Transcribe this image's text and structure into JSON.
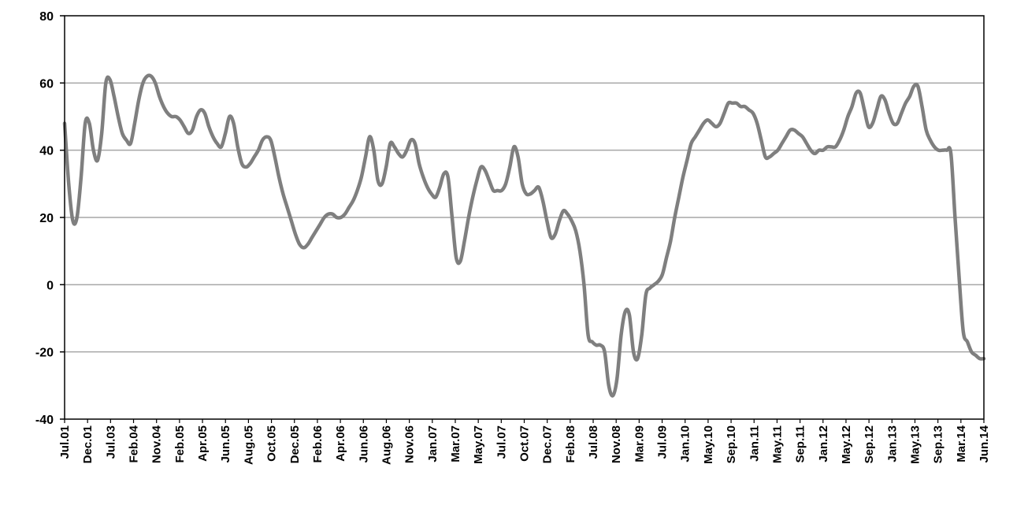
{
  "chart_data": {
    "type": "line",
    "title": "",
    "xlabel": "",
    "ylabel": "",
    "ylim": [
      -40,
      80
    ],
    "yticks": [
      -40,
      -20,
      0,
      20,
      40,
      60,
      80
    ],
    "grid": "horizontal",
    "legend": "none",
    "x_tick_labels": [
      "Jul.01",
      "Dec.01",
      "Jul.03",
      "Feb.04",
      "Nov.04",
      "Feb.05",
      "Apr.05",
      "Jun.05",
      "Aug.05",
      "Oct.05",
      "Dec.05",
      "Feb.06",
      "Apr.06",
      "Jun.06",
      "Aug.06",
      "Nov.06",
      "Jan.07",
      "Mar.07",
      "May.07",
      "Jul.07",
      "Oct.07",
      "Dec.07",
      "Feb.08",
      "Jul.08",
      "Nov.08",
      "Mar.09",
      "Jul.09",
      "Jan.10",
      "May.10",
      "Sep.10",
      "Jan.11",
      "May.11",
      "Sep.11",
      "Jan.12",
      "May.12",
      "Sep.12",
      "Jan.13",
      "May.13",
      "Sep.13",
      "Mar.14",
      "Jun.14"
    ],
    "colors": {
      "line": "#7f7f7f",
      "grid": "#a6a6a6",
      "axis": "#000000"
    },
    "series": [
      {
        "values": [
          48,
          30,
          19,
          20,
          32,
          48,
          48,
          40,
          37,
          45,
          60,
          61,
          56,
          50,
          45,
          43,
          42,
          48,
          55,
          60,
          62,
          62,
          60,
          56,
          53,
          51,
          50,
          50,
          49,
          47,
          45,
          46,
          50,
          52,
          51,
          47,
          44,
          42,
          41,
          45,
          50,
          48,
          41,
          36,
          35,
          36,
          38,
          40,
          43,
          44,
          43,
          38,
          32,
          27,
          23,
          19,
          15,
          12,
          11,
          12,
          14,
          16,
          18,
          20,
          21,
          21,
          20,
          20,
          21,
          23,
          25,
          28,
          32,
          38,
          44,
          40,
          31,
          30,
          35,
          42,
          41,
          39,
          38,
          40,
          43,
          42,
          36,
          32,
          29,
          27,
          26,
          29,
          33,
          32,
          20,
          8,
          7,
          13,
          20,
          26,
          31,
          35,
          34,
          31,
          28,
          28,
          28,
          30,
          35,
          41,
          38,
          30,
          27,
          27,
          28,
          29,
          25,
          19,
          14,
          15,
          19,
          22,
          21,
          19,
          16,
          10,
          0,
          -15,
          -17,
          -18,
          -18,
          -20,
          -30,
          -33,
          -28,
          -15,
          -8,
          -9,
          -20,
          -22,
          -15,
          -3,
          -1,
          0,
          1,
          3,
          8,
          13,
          20,
          26,
          32,
          37,
          42,
          44,
          46,
          48,
          49,
          48,
          47,
          48,
          51,
          54,
          54,
          54,
          53,
          53,
          52,
          51,
          48,
          43,
          38,
          38,
          39,
          40,
          42,
          44,
          46,
          46,
          45,
          44,
          42,
          40,
          39,
          40,
          40,
          41,
          41,
          41,
          43,
          46,
          50,
          53,
          57,
          57,
          52,
          47,
          48,
          52,
          56,
          55,
          51,
          48,
          48,
          51,
          54,
          56,
          59,
          59,
          53,
          46,
          43,
          41,
          40,
          40,
          40,
          39,
          20,
          2,
          -14,
          -17,
          -20,
          -21,
          -22,
          -22
        ]
      }
    ]
  }
}
